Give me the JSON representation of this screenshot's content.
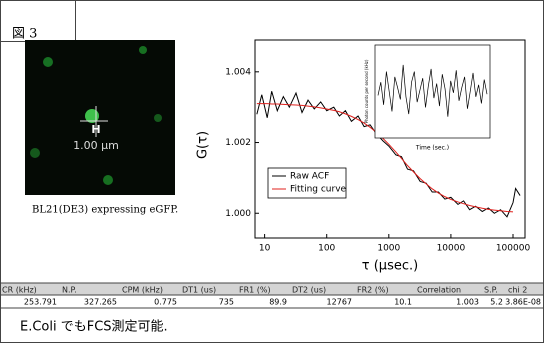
{
  "figure_label": "図 3",
  "image": {
    "marker_label": "H",
    "scale_label": "1.00 µm",
    "caption": "BL21(DE3) expressing eGFP."
  },
  "chart_data": [
    {
      "type": "line",
      "xlabel": "τ (µsec.)",
      "ylabel": "G(τ)",
      "xscale": "log",
      "x": [
        7.5,
        9,
        11,
        13,
        16,
        20,
        25,
        32,
        40,
        50,
        63,
        80,
        100,
        130,
        160,
        200,
        250,
        320,
        400,
        500,
        630,
        800,
        1000,
        1300,
        1600,
        2000,
        2500,
        3200,
        4000,
        5000,
        6300,
        8000,
        10000,
        13000,
        16000,
        20000,
        25000,
        32000,
        40000,
        50000,
        63000,
        80000,
        100000,
        110000,
        130000
      ],
      "series": [
        {
          "name": "Raw ACF",
          "color": "#000000",
          "values": [
            1.0028,
            1.00335,
            1.0027,
            1.00345,
            1.0029,
            1.0033,
            1.003,
            1.0034,
            1.00285,
            1.0032,
            1.00295,
            1.00315,
            1.0029,
            1.003,
            1.00275,
            1.0029,
            1.0026,
            1.00275,
            1.00245,
            1.0025,
            1.00225,
            1.00205,
            1.0019,
            1.00165,
            1.0016,
            1.00125,
            1.0012,
            1.0009,
            1.00085,
            1.0006,
            1.0006,
            1.0004,
            1.00045,
            1.00025,
            1.00035,
            1.0001,
            1.0002,
            1.00005,
            1.00015,
            1.0,
            1.0001,
            0.9999,
            1.0003,
            1.0007,
            1.0005
          ]
        },
        {
          "name": "Fitting curve",
          "color": "#e0201c",
          "values": [
            1.0031,
            1.0031,
            1.0031,
            1.00309,
            1.00309,
            1.00308,
            1.00307,
            1.00306,
            1.00305,
            1.00303,
            1.00301,
            1.00298,
            1.00295,
            1.00291,
            1.00287,
            1.00281,
            1.00274,
            1.00265,
            1.00255,
            1.00243,
            1.00229,
            1.00212,
            1.00195,
            1.00173,
            1.00155,
            1.00135,
            1.00117,
            1.00098,
            1.00083,
            1.00069,
            1.00057,
            1.00047,
            1.00039,
            1.00032,
            1.00027,
            1.00022,
            1.00018,
            1.00014,
            1.00011,
            1.00009,
            1.00007,
            1.00005,
            1.00004,
            null,
            null
          ]
        }
      ],
      "xlim": [
        7,
        156000
      ],
      "xticks": [
        10,
        100,
        1000,
        10000,
        100000
      ],
      "ylim": [
        0.9993,
        1.0049
      ],
      "yticks": [
        {
          "value": 1.0,
          "label": "1.000"
        },
        {
          "value": 1.002,
          "label": "1.002"
        },
        {
          "value": 1.004,
          "label": "1.004"
        }
      ],
      "legend": "bottom-left"
    },
    {
      "type": "line",
      "xlabel": "Time (sec.)",
      "ylabel": "Photon counts per second (kHz)",
      "values": [
        252,
        262,
        245,
        270,
        255,
        240,
        266,
        258,
        249,
        275,
        251,
        238,
        262,
        270,
        247,
        256,
        265,
        243,
        259,
        272,
        250,
        261,
        244,
        268,
        257,
        236,
        263,
        254,
        271,
        248,
        258,
        266,
        242,
        255,
        269,
        251,
        260,
        246,
        264,
        253
      ],
      "ylim": [
        220,
        290
      ],
      "color": "#000000"
    }
  ],
  "table": {
    "header": [
      "CR (kHz)",
      "N.P.",
      "CPM (kHz)",
      "DT1 (us)",
      "FR1 (%)",
      "DT2 (us)",
      "FR2 (%)",
      "Correlation",
      "S.P.",
      "chi 2"
    ],
    "rows": [
      [
        "253.791",
        "327.265",
        "0.775",
        "735",
        "89.9",
        "12767",
        "10.1",
        "1.003",
        "5.2",
        "3.86E-08"
      ]
    ]
  },
  "footer": "E.Coli でもFCS測定可能."
}
